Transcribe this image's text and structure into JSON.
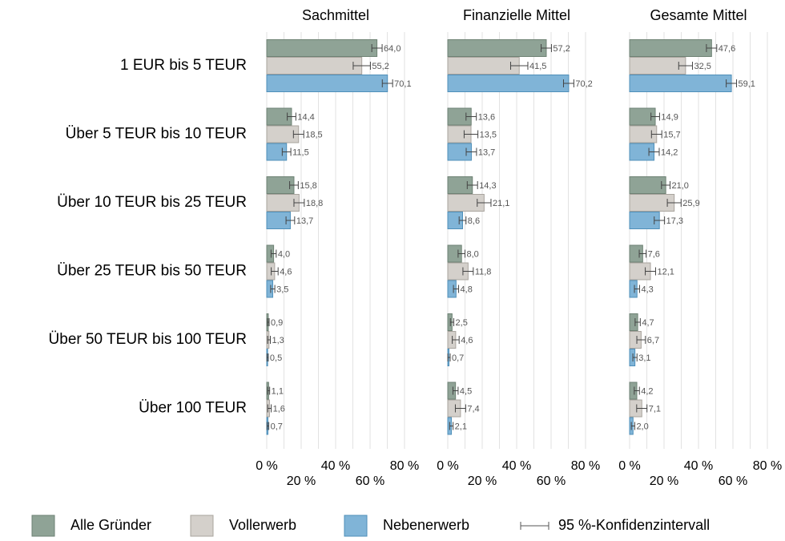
{
  "chart_data": {
    "type": "bar",
    "orientation": "horizontal",
    "categories": [
      "1 EUR bis 5 TEUR",
      "Über 5 TEUR bis 10 TEUR",
      "Über 10 TEUR bis 25 TEUR",
      "Über 25 TEUR bis 50 TEUR",
      "Über 50 TEUR bis 100 TEUR",
      "Über 100 TEUR"
    ],
    "series": [
      {
        "name": "Alle Gründer",
        "color": "#8fa396"
      },
      {
        "name": "Vollerwerb",
        "color": "#d4d0cb"
      },
      {
        "name": "Nebenerwerb",
        "color": "#80b4d7"
      }
    ],
    "error_label": "95 %-Konfidenzintervall",
    "xlim": [
      0,
      80
    ],
    "xticks": [
      {
        "value": 0,
        "label": "0 %"
      },
      {
        "value": 20,
        "label": "20 %"
      },
      {
        "value": 40,
        "label": "40 %"
      },
      {
        "value": 60,
        "label": "60 %"
      },
      {
        "value": 80,
        "label": "80 %"
      }
    ],
    "xminor": [
      10,
      30,
      50,
      70
    ],
    "grid": true,
    "panels": [
      {
        "title": "Sachmittel",
        "series": [
          {
            "values": [
              64.0,
              14.4,
              15.8,
              4.0,
              0.9,
              1.1
            ],
            "value_labels": [
              "64,0",
              "14,4",
              "15,8",
              "4,0",
              "0,9",
              "1,1"
            ],
            "errors": [
              3,
              2.5,
              2.5,
              1.5,
              0.5,
              0.6
            ]
          },
          {
            "values": [
              55.2,
              18.5,
              18.8,
              4.6,
              1.3,
              1.6
            ],
            "value_labels": [
              "55,2",
              "18,5",
              "18,8",
              "4,6",
              "1,3",
              "1,6"
            ],
            "errors": [
              5,
              3,
              3,
              2,
              0.8,
              1
            ]
          },
          {
            "values": [
              70.1,
              11.5,
              13.7,
              3.5,
              0.5,
              0.7
            ],
            "value_labels": [
              "70,1",
              "11,5",
              "13,7",
              "3,5",
              "0,5",
              "0,7"
            ],
            "errors": [
              3,
              2.5,
              2.5,
              1.2,
              0.4,
              0.5
            ]
          }
        ]
      },
      {
        "title": "Finanzielle Mittel",
        "series": [
          {
            "values": [
              57.2,
              13.6,
              14.3,
              8.0,
              2.5,
              4.5
            ],
            "value_labels": [
              "57,2",
              "13,6",
              "14,3",
              "8,0",
              "2,5",
              "4,5"
            ],
            "errors": [
              3,
              3,
              3,
              2,
              1,
              1.5
            ]
          },
          {
            "values": [
              41.5,
              13.5,
              21.1,
              11.8,
              4.6,
              7.4
            ],
            "value_labels": [
              "41,5",
              "13,5",
              "21,1",
              "11,8",
              "4,6",
              "7,4"
            ],
            "errors": [
              5,
              4,
              4,
              3,
              2,
              3
            ]
          },
          {
            "values": [
              70.2,
              13.7,
              8.6,
              4.8,
              0.7,
              2.1
            ],
            "value_labels": [
              "70,2",
              "13,7",
              "8,6",
              "4,8",
              "0,7",
              "2,1"
            ],
            "errors": [
              3,
              3,
              2,
              1.5,
              0.7,
              1
            ]
          }
        ]
      },
      {
        "title": "Gesamte Mittel",
        "series": [
          {
            "values": [
              47.6,
              14.9,
              21.0,
              7.6,
              4.7,
              4.2
            ],
            "value_labels": [
              "47,6",
              "14,9",
              "21,0",
              "7,6",
              "4,7",
              "4,2"
            ],
            "errors": [
              3,
              2.5,
              2.5,
              2,
              1.5,
              1.5
            ]
          },
          {
            "values": [
              32.5,
              15.7,
              25.9,
              12.1,
              6.7,
              7.1
            ],
            "value_labels": [
              "32,5",
              "15,7",
              "25,9",
              "12,1",
              "6,7",
              "7,1"
            ],
            "errors": [
              4,
              3,
              4,
              3,
              2.5,
              3
            ]
          },
          {
            "values": [
              59.1,
              14.2,
              17.3,
              4.3,
              3.1,
              2.0
            ],
            "value_labels": [
              "59,1",
              "14,2",
              "17,3",
              "4,3",
              "3,1",
              "2,0"
            ],
            "errors": [
              3,
              3,
              3,
              1.5,
              1.2,
              1
            ]
          }
        ]
      }
    ]
  }
}
